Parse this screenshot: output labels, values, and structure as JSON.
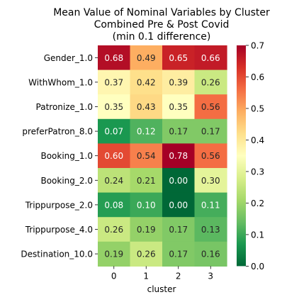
{
  "chart_data": {
    "type": "heatmap",
    "title_lines": [
      "Mean Value of Nominal Variables by Cluster",
      "Combined Pre & Post Covid",
      "(min 0.1 difference)"
    ],
    "xlabel": "cluster",
    "ylabel": "",
    "x_categories": [
      "0",
      "1",
      "2",
      "3"
    ],
    "y_categories": [
      "Gender_1.0",
      "WithWhom_1.0",
      "Patronize_1.0",
      "preferPatron_8.0",
      "Booking_1.0",
      "Booking_2.0",
      "Trippurpose_2.0",
      "Trippurpose_4.0",
      "Destination_10.0"
    ],
    "values": [
      [
        0.68,
        0.49,
        0.65,
        0.66
      ],
      [
        0.37,
        0.42,
        0.39,
        0.26
      ],
      [
        0.35,
        0.43,
        0.35,
        0.56
      ],
      [
        0.07,
        0.12,
        0.17,
        0.17
      ],
      [
        0.6,
        0.54,
        0.78,
        0.56
      ],
      [
        0.24,
        0.21,
        0.0,
        0.3
      ],
      [
        0.08,
        0.1,
        0.0,
        0.11
      ],
      [
        0.26,
        0.19,
        0.17,
        0.13
      ],
      [
        0.19,
        0.26,
        0.17,
        0.16
      ]
    ],
    "cell_labels": [
      [
        "0.68",
        "0.49",
        "0.65",
        "0.66"
      ],
      [
        "0.37",
        "0.42",
        "0.39",
        "0.26"
      ],
      [
        "0.35",
        "0.43",
        "0.35",
        "0.56"
      ],
      [
        "0.07",
        "0.12",
        "0.17",
        "0.17"
      ],
      [
        "0.60",
        "0.54",
        "0.78",
        "0.56"
      ],
      [
        "0.24",
        "0.21",
        "0.00",
        "0.30"
      ],
      [
        "0.08",
        "0.10",
        "0.00",
        "0.11"
      ],
      [
        "0.26",
        "0.19",
        "0.17",
        "0.13"
      ],
      [
        "0.19",
        "0.26",
        "0.17",
        "0.16"
      ]
    ],
    "colormap": "RdYlGn_r",
    "vmin": 0.0,
    "vmax": 0.7,
    "colorbar_ticks": [
      "0.0",
      "0.1",
      "0.2",
      "0.3",
      "0.4",
      "0.5",
      "0.6",
      "0.7"
    ],
    "colorbar_tick_values": [
      0.0,
      0.1,
      0.2,
      0.3,
      0.4,
      0.5,
      0.6,
      0.7
    ],
    "grid": false,
    "legend": "colorbar-right"
  }
}
